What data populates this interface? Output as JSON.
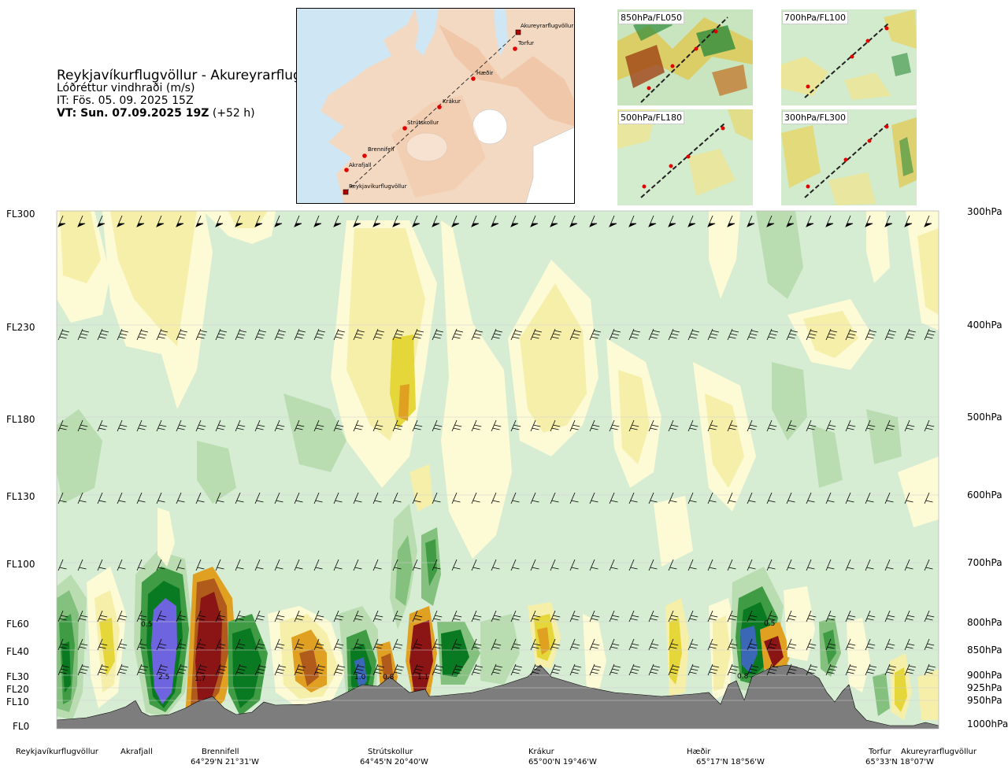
{
  "header": {
    "route": "Reykjavíkurflugvöllur - Akureyrarflugvöllur",
    "parameter": "Lóðréttur vindhraði (m/s)",
    "initial_time": "IT: Fös. 05. 09. 2025 15Z",
    "valid_time_bold": "VT: Sun. 07.09.2025 19Z",
    "lead_time": "(+52 h)"
  },
  "route_map": {
    "places": [
      "Akureyrarflugvöllur",
      "Torfur",
      "Hæðir",
      "Krákur",
      "Strútskollur",
      "Brennifell",
      "Akrafjall",
      "Reykjavíkurflugvöllur"
    ]
  },
  "level_maps": [
    {
      "label": "850hPa/FL050"
    },
    {
      "label": "700hPa/FL100"
    },
    {
      "label": "500hPa/FL180"
    },
    {
      "label": "300hPa/FL300"
    }
  ],
  "chart_data": {
    "type": "heatmap",
    "title": "Lóðréttur vindhraði (m/s)",
    "y_left_ticks": [
      "FL300",
      "FL230",
      "FL180",
      "FL130",
      "FL100",
      "FL60",
      "FL40",
      "FL30",
      "FL20",
      "FL10",
      "FL0"
    ],
    "y_right_ticks": [
      "300hPa",
      "400hPa",
      "500hPa",
      "600hPa",
      "700hPa",
      "800hPa",
      "850hPa",
      "900hPa",
      "925hPa",
      "950hPa",
      "1000hPa"
    ],
    "y_range_hpa": [
      1000,
      300
    ],
    "waypoints": [
      {
        "name": "Reykjavíkurflugvöllur",
        "coord": ""
      },
      {
        "name": "Akrafjall",
        "coord": ""
      },
      {
        "name": "Brennifell",
        "coord": "64°29'N 21°31'W"
      },
      {
        "name": "Strútskollur",
        "coord": "64°45'N 20°40'W"
      },
      {
        "name": "Krákur",
        "coord": "65°00'N 19°46'W"
      },
      {
        "name": "Hæðir",
        "coord": "65°17'N 18°56'W"
      },
      {
        "name": "Torfur",
        "coord": "65°33'N 18°07'W"
      },
      {
        "name": "Akureyrarflugvöllur",
        "coord": ""
      }
    ],
    "contour_labels": [
      {
        "text": "0.5",
        "near": "Akrafjall",
        "level_hpa": 800
      },
      {
        "text": "2.5",
        "near": "Akrafjall",
        "level_hpa": 900
      },
      {
        "text": "1.7",
        "near": "Brennifell",
        "level_hpa": 900
      },
      {
        "text": "1.0",
        "near": "Strútskollur",
        "level_hpa": 900
      },
      {
        "text": "0.8",
        "near": "Strútskollur",
        "level_hpa": 900
      },
      {
        "text": "1.1",
        "near": "Strútskollur",
        "level_hpa": 900
      },
      {
        "text": "0.8",
        "near": "Hæðir",
        "level_hpa": 900
      },
      {
        "text": "0.5",
        "near": "Hæðir",
        "level_hpa": 800
      }
    ],
    "colors": {
      "strong_down": "#6f64e0",
      "down_3": "#0a7a22",
      "down_2": "#3f9c44",
      "down_1": "#85c17e",
      "down_0": "#b9ddb0",
      "neutral": "#d6edd4",
      "up_0": "#fdfad6",
      "up_1": "#f5efaa",
      "up_2": "#e5d63a",
      "up_3": "#e0a021",
      "up_4": "#b05a1b",
      "strong_up": "#8b1414",
      "terrain": "#7d7d7d"
    }
  }
}
